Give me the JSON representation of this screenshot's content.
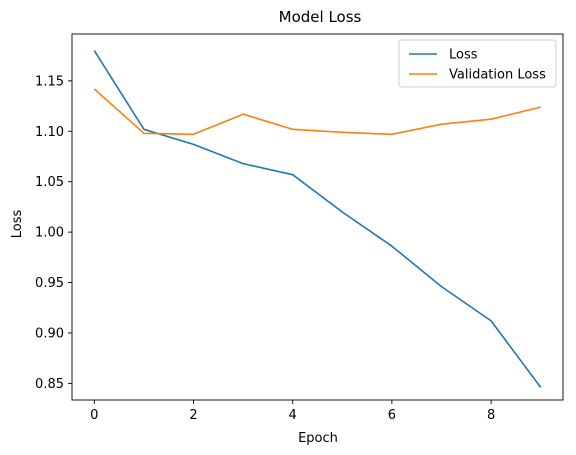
{
  "chart_data": {
    "type": "line",
    "title": "Model Loss",
    "xlabel": "Epoch",
    "ylabel": "Loss",
    "x": [
      0,
      1,
      2,
      3,
      4,
      5,
      6,
      7,
      8,
      9
    ],
    "xlim": [
      -0.45,
      9.45
    ],
    "ylim": [
      0.8335,
      1.1965
    ],
    "xticks": [
      0,
      2,
      4,
      6,
      8
    ],
    "yticks": [
      0.85,
      0.9,
      0.95,
      1.0,
      1.05,
      1.1,
      1.15
    ],
    "grid": false,
    "legend_position": "top-right",
    "series": [
      {
        "name": "Loss",
        "color": "#1f77b4",
        "values": [
          1.18,
          1.102,
          1.087,
          1.068,
          1.057,
          1.02,
          0.986,
          0.946,
          0.912,
          0.846
        ]
      },
      {
        "name": "Validation Loss",
        "color": "#ff7f0e",
        "values": [
          1.142,
          1.098,
          1.097,
          1.117,
          1.102,
          1.099,
          1.097,
          1.107,
          1.112,
          1.124
        ]
      }
    ]
  }
}
